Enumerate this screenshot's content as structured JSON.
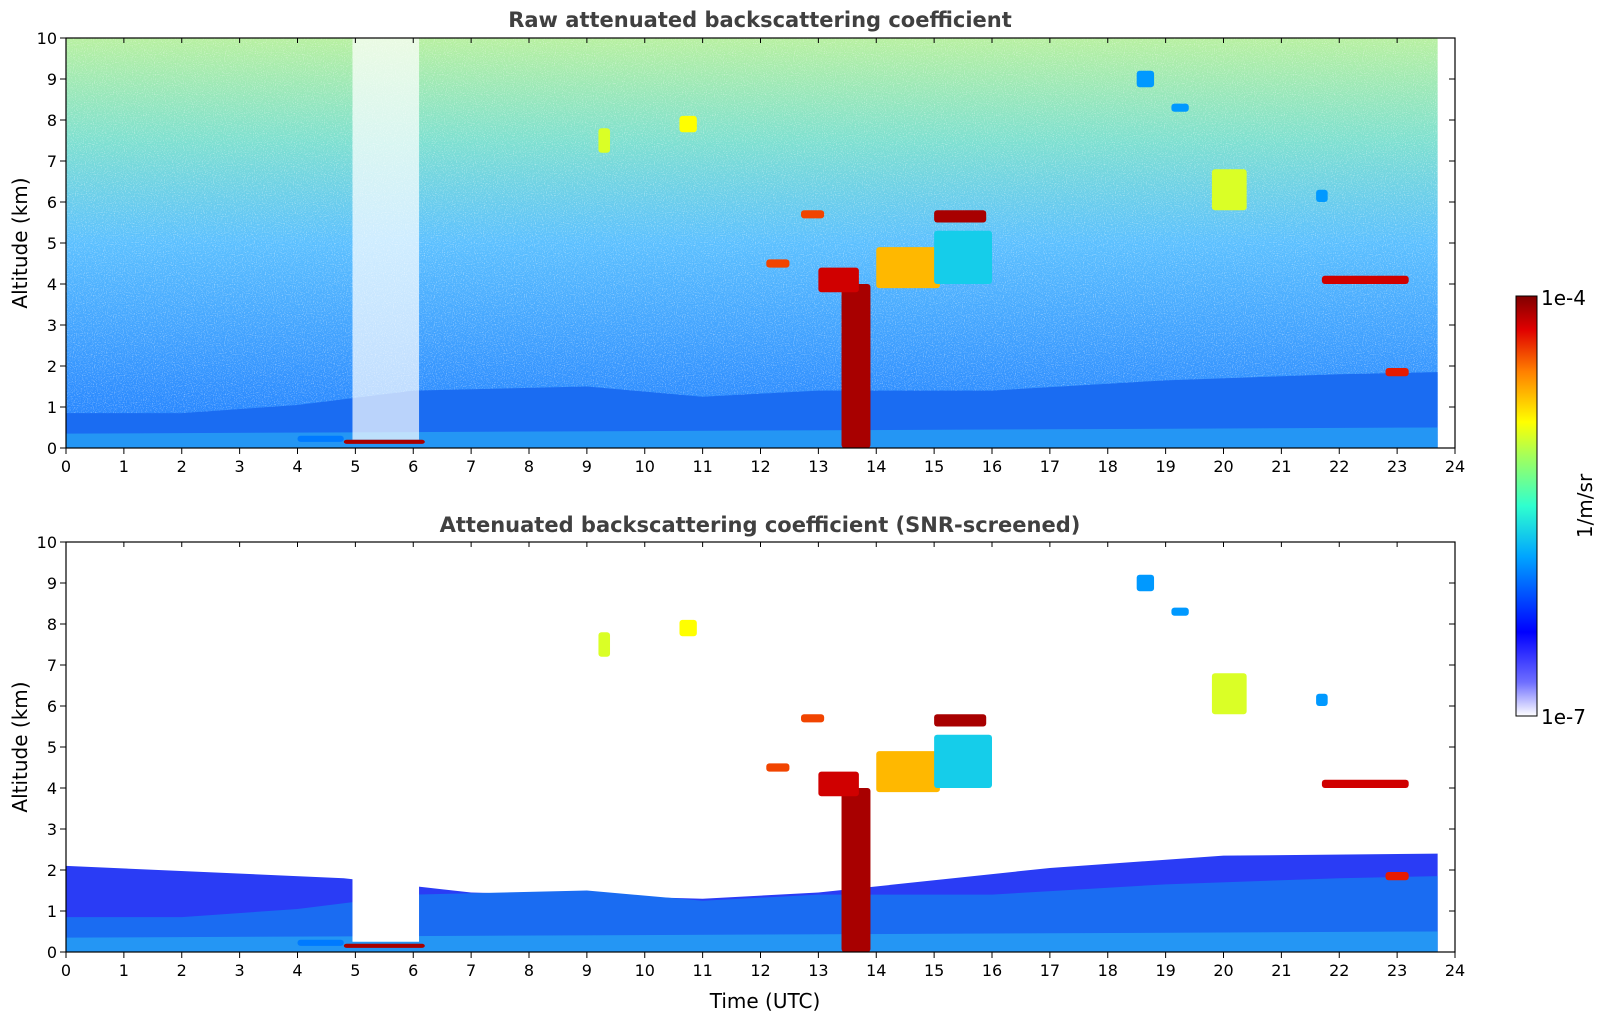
{
  "chart_data": [
    {
      "type": "heatmap",
      "title": "Raw attenuated backscattering coefficient",
      "xlabel": "",
      "ylabel": "Altitude (km)",
      "xlim": [
        0,
        24
      ],
      "ylim": [
        0,
        10
      ],
      "x_ticks": [
        "0",
        "1",
        "2",
        "3",
        "4",
        "5",
        "6",
        "7",
        "8",
        "9",
        "10",
        "11",
        "12",
        "13",
        "14",
        "15",
        "16",
        "17",
        "18",
        "19",
        "20",
        "21",
        "22",
        "23",
        "24"
      ],
      "y_ticks": [
        "0",
        "1",
        "2",
        "3",
        "4",
        "5",
        "6",
        "7",
        "8",
        "9",
        "10"
      ],
      "data_end_hour": 23.7,
      "boundary_layer_top_km": [
        {
          "t": 0,
          "z": 0.85
        },
        {
          "t": 2,
          "z": 0.85
        },
        {
          "t": 4,
          "z": 1.05
        },
        {
          "t": 6,
          "z": 1.4
        },
        {
          "t": 9,
          "z": 1.5
        },
        {
          "t": 11,
          "z": 1.25
        },
        {
          "t": 13,
          "z": 1.4
        },
        {
          "t": 16,
          "z": 1.4
        },
        {
          "t": 19,
          "z": 1.65
        },
        {
          "t": 22,
          "z": 1.8
        },
        {
          "t": 23.7,
          "z": 1.85
        }
      ],
      "features": [
        {
          "name": "dense plume",
          "t0": 13.4,
          "t1": 13.9,
          "z0": 0,
          "z1": 4.0,
          "value_exp": -4.1
        },
        {
          "name": "layer",
          "t0": 13.0,
          "t1": 13.7,
          "z0": 3.8,
          "z1": 4.4,
          "value_exp": -4.2
        },
        {
          "name": "layer",
          "t0": 14.0,
          "t1": 15.1,
          "z0": 3.9,
          "z1": 4.9,
          "value_exp": -4.7
        },
        {
          "name": "layer",
          "t0": 15.0,
          "t1": 15.9,
          "z0": 5.5,
          "z1": 5.8,
          "value_exp": -4.1
        },
        {
          "name": "layer",
          "t0": 15.0,
          "t1": 16.0,
          "z0": 4.0,
          "z1": 5.3,
          "value_exp": -5.7
        },
        {
          "name": "layer",
          "t0": 12.7,
          "t1": 13.1,
          "z0": 5.6,
          "z1": 5.8,
          "value_exp": -4.4
        },
        {
          "name": "layer",
          "t0": 12.1,
          "t1": 12.5,
          "z0": 4.4,
          "z1": 4.6,
          "value_exp": -4.4
        },
        {
          "name": "cloud",
          "t0": 19.8,
          "t1": 20.4,
          "z0": 5.8,
          "z1": 6.8,
          "value_exp": -5.0
        },
        {
          "name": "cloud",
          "t0": 21.6,
          "t1": 21.8,
          "z0": 6.0,
          "z1": 6.3,
          "value_exp": -5.9
        },
        {
          "name": "layer",
          "t0": 21.7,
          "t1": 23.2,
          "z0": 4.0,
          "z1": 4.2,
          "value_exp": -4.2
        },
        {
          "name": "layer",
          "t0": 22.8,
          "t1": 23.2,
          "z0": 1.75,
          "z1": 1.95,
          "value_exp": -4.3
        },
        {
          "name": "cloud",
          "t0": 10.6,
          "t1": 10.9,
          "z0": 7.7,
          "z1": 8.1,
          "value_exp": -4.9
        },
        {
          "name": "cloud",
          "t0": 9.2,
          "t1": 9.4,
          "z0": 7.2,
          "z1": 7.8,
          "value_exp": -5.0
        },
        {
          "name": "cloud",
          "t0": 18.5,
          "t1": 18.8,
          "z0": 8.8,
          "z1": 9.2,
          "value_exp": -5.9
        },
        {
          "name": "cloud",
          "t0": 19.1,
          "t1": 19.4,
          "z0": 8.2,
          "z1": 8.4,
          "value_exp": -5.9
        },
        {
          "name": "surface",
          "t0": 4.8,
          "t1": 6.2,
          "z0": 0.1,
          "z1": 0.2,
          "value_exp": -4.1
        },
        {
          "name": "surface",
          "t0": 4.0,
          "t1": 4.8,
          "z0": 0.15,
          "z1": 0.3,
          "value_exp": -6.0
        }
      ]
    },
    {
      "type": "heatmap",
      "title": "Attenuated backscattering coefficient (SNR-screened)",
      "xlabel": "Time (UTC)",
      "ylabel": "Altitude (km)",
      "xlim": [
        0,
        24
      ],
      "ylim": [
        0,
        10
      ],
      "x_ticks": [
        "0",
        "1",
        "2",
        "3",
        "4",
        "5",
        "6",
        "7",
        "8",
        "9",
        "10",
        "11",
        "12",
        "13",
        "14",
        "15",
        "16",
        "17",
        "18",
        "19",
        "20",
        "21",
        "22",
        "23",
        "24"
      ],
      "y_ticks": [
        "0",
        "1",
        "2",
        "3",
        "4",
        "5",
        "6",
        "7",
        "8",
        "9",
        "10"
      ],
      "screened_top_km": [
        {
          "t": 0,
          "z": 2.1
        },
        {
          "t": 4.8,
          "z": 1.8
        },
        {
          "t": 7,
          "z": 1.45
        },
        {
          "t": 11,
          "z": 1.3
        },
        {
          "t": 13,
          "z": 1.45
        },
        {
          "t": 17,
          "z": 2.05
        },
        {
          "t": 20,
          "z": 2.35
        },
        {
          "t": 23.7,
          "z": 2.4
        }
      ]
    }
  ],
  "colorbar": {
    "label": "1/m/sr",
    "max_label": "1e-4",
    "min_label": "1e-7",
    "scale": "log",
    "range": [
      1e-07,
      0.0001
    ],
    "colormap": [
      "#ffffff",
      "#0000ff",
      "#00bfff",
      "#3fffbf",
      "#ffff00",
      "#ff8000",
      "#e00000",
      "#800000"
    ]
  }
}
